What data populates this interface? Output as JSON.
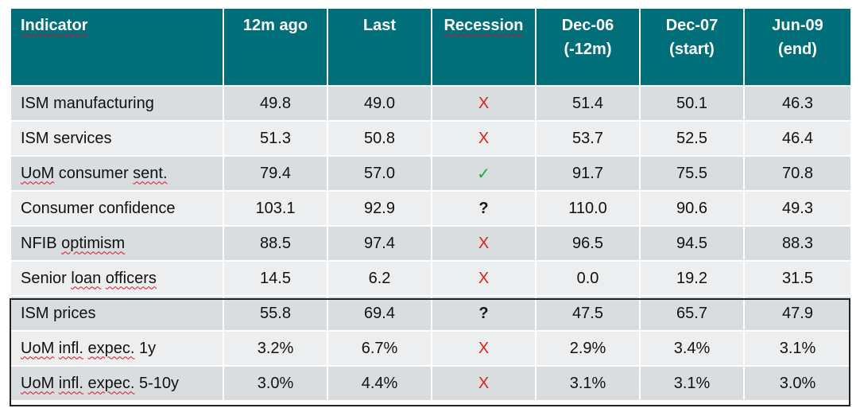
{
  "headers": [
    {
      "lines": [
        "Indicator"
      ]
    },
    {
      "lines": [
        "12m ago"
      ]
    },
    {
      "lines": [
        "Last"
      ]
    },
    {
      "lines": [
        "Recession"
      ]
    },
    {
      "lines": [
        "Dec-06",
        "(-12m)"
      ]
    },
    {
      "lines": [
        "Dec-07",
        "(start)"
      ]
    },
    {
      "lines": [
        "Jun-09",
        "(end)"
      ]
    }
  ],
  "rows": [
    {
      "indicator": "ISM manufacturing",
      "ago": "49.8",
      "last": "49.0",
      "recession": "X",
      "recession_kind": "x",
      "dec06": "51.4",
      "dec07": "50.1",
      "jun09": "46.3"
    },
    {
      "indicator": "ISM services",
      "ago": "51.3",
      "last": "50.8",
      "recession": "X",
      "recession_kind": "x",
      "dec06": "53.7",
      "dec07": "52.5",
      "jun09": "46.4"
    },
    {
      "indicator": "UoM consumer sent.",
      "ago": "79.4",
      "last": "57.0",
      "recession": "✓",
      "recession_kind": "check",
      "dec06": "91.7",
      "dec07": "75.5",
      "jun09": "70.8"
    },
    {
      "indicator": "Consumer confidence",
      "ago": "103.1",
      "last": "92.9",
      "recession": "?",
      "recession_kind": "q",
      "dec06": "110.0",
      "dec07": "90.6",
      "jun09": "49.3"
    },
    {
      "indicator": "NFIB optimism",
      "ago": "88.5",
      "last": "97.4",
      "recession": "X",
      "recession_kind": "x",
      "dec06": "96.5",
      "dec07": "94.5",
      "jun09": "88.3"
    },
    {
      "indicator": "Senior loan officers",
      "ago": "14.5",
      "last": "6.2",
      "recession": "X",
      "recession_kind": "x",
      "dec06": "0.0",
      "dec07": "19.2",
      "jun09": "31.5"
    },
    {
      "indicator": "ISM prices",
      "ago": "55.8",
      "last": "69.4",
      "recession": "?",
      "recession_kind": "q",
      "dec06": "47.5",
      "dec07": "65.7",
      "jun09": "47.9"
    },
    {
      "indicator": "UoM infl. expec. 1y",
      "ago": "3.2%",
      "last": "6.7%",
      "recession": "X",
      "recession_kind": "x",
      "dec06": "2.9%",
      "dec07": "3.4%",
      "jun09": "3.1%"
    },
    {
      "indicator": "UoM infl. expec. 5-10y",
      "ago": "3.0%",
      "last": "4.4%",
      "recession": "X",
      "recession_kind": "x",
      "dec06": "3.1%",
      "dec07": "3.1%",
      "jun09": "3.0%"
    }
  ],
  "colors": {
    "header": "#006f7a",
    "row_dark": "#d9dddf",
    "row_light": "#eceeef",
    "x_mark": "#e0201b",
    "check_mark": "#1aa84a"
  }
}
